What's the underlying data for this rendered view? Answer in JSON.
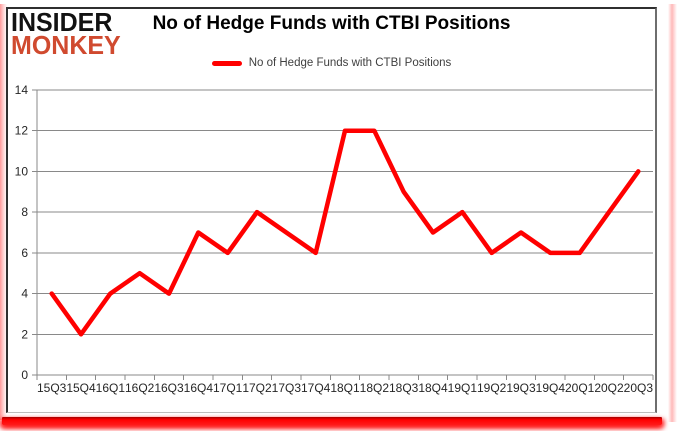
{
  "logo": {
    "line1": "INSIDER",
    "line2": "MONKEY"
  },
  "header": {
    "title": "No of Hedge Funds with CTBI Positions"
  },
  "legend": {
    "label": "No of Hedge Funds with CTBI Positions"
  },
  "colors": {
    "series_line": "#ff0000",
    "logo_text": "#121212",
    "logo_accent": "#d04a2f",
    "gridline": "#898989",
    "axis_text": "#262626",
    "legend_text": "#3f3f3f",
    "title_text": "#000000",
    "glow": "#ff0000",
    "background": "#ffffff"
  },
  "chart_data": {
    "type": "line",
    "title": "No of Hedge Funds with CTBI Positions",
    "categories": [
      "15Q3",
      "15Q4",
      "16Q1",
      "16Q2",
      "16Q3",
      "16Q4",
      "17Q1",
      "17Q2",
      "17Q3",
      "17Q4",
      "18Q1",
      "18Q2",
      "18Q3",
      "18Q4",
      "19Q1",
      "19Q2",
      "19Q3",
      "19Q4",
      "20Q1",
      "20Q2",
      "20Q3"
    ],
    "series": [
      {
        "name": "No of Hedge Funds with CTBI Positions",
        "color": "#ff0000",
        "values": [
          4,
          2,
          4,
          5,
          4,
          7,
          6,
          8,
          7,
          6,
          12,
          12,
          9,
          7,
          8,
          6,
          7,
          6,
          6,
          8,
          10
        ]
      }
    ],
    "xlabel": "",
    "ylabel": "",
    "ylim": [
      0,
      14
    ],
    "yticks": [
      0,
      2,
      4,
      6,
      8,
      10,
      12,
      14
    ],
    "grid": "horizontal",
    "legend_position": "top"
  }
}
